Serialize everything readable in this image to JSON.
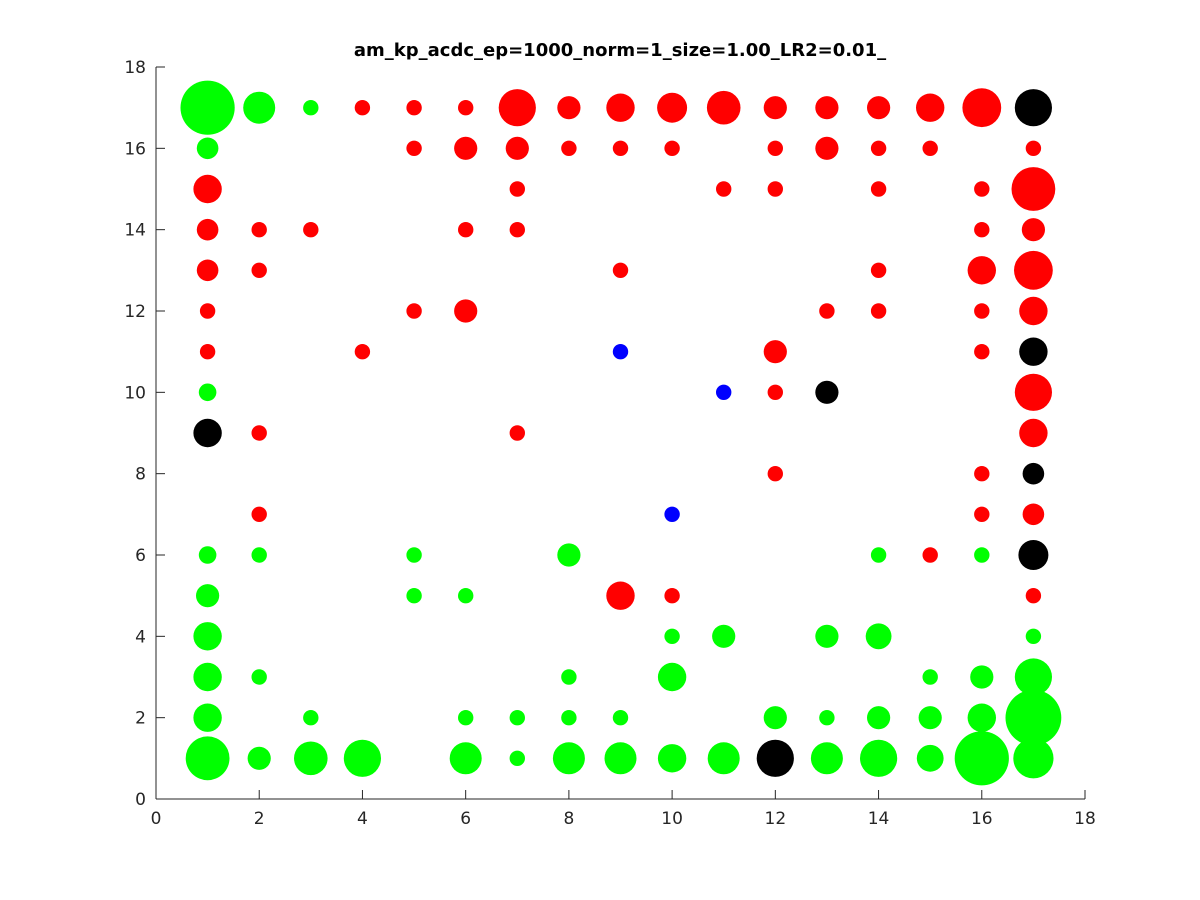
{
  "chart_data": {
    "type": "scatter",
    "title": "am_kp_acdc_ep=1000_norm=1_size=1.00_LR2=0.01_",
    "xlabel": "",
    "ylabel": "",
    "xlim": [
      0,
      18
    ],
    "ylim": [
      0,
      18
    ],
    "xticks": [
      "0",
      "2",
      "4",
      "6",
      "8",
      "10",
      "12",
      "14",
      "16",
      "18"
    ],
    "yticks": [
      "0",
      "2",
      "4",
      "6",
      "8",
      "10",
      "12",
      "14",
      "16",
      "18"
    ],
    "grid": false,
    "legend": "none",
    "colors": {
      "green": "#00ff00",
      "red": "#ff0000",
      "blue": "#0000ff",
      "black": "#000000"
    },
    "note_size": "marker diameter in data units (x-axis scale)",
    "series": [
      {
        "color": "green",
        "points": [
          [
            1,
            17,
            1.05
          ],
          [
            2,
            17,
            0.62
          ],
          [
            3,
            17,
            0.3
          ],
          [
            1,
            16,
            0.42
          ],
          [
            1,
            10,
            0.34
          ],
          [
            1,
            6,
            0.34
          ],
          [
            2,
            6,
            0.3
          ],
          [
            5,
            6,
            0.3
          ],
          [
            8,
            6,
            0.45
          ],
          [
            14,
            6,
            0.3
          ],
          [
            16,
            6,
            0.3
          ],
          [
            1,
            5,
            0.45
          ],
          [
            5,
            5,
            0.3
          ],
          [
            6,
            5,
            0.3
          ],
          [
            1,
            4,
            0.55
          ],
          [
            10,
            4,
            0.3
          ],
          [
            11,
            4,
            0.45
          ],
          [
            13,
            4,
            0.45
          ],
          [
            14,
            4,
            0.5
          ],
          [
            17,
            4,
            0.3
          ],
          [
            1,
            3,
            0.55
          ],
          [
            2,
            3,
            0.3
          ],
          [
            8,
            3,
            0.3
          ],
          [
            10,
            3,
            0.55
          ],
          [
            15,
            3,
            0.3
          ],
          [
            16,
            3,
            0.45
          ],
          [
            17,
            3,
            0.72
          ],
          [
            1,
            2,
            0.55
          ],
          [
            3,
            2,
            0.3
          ],
          [
            6,
            2,
            0.3
          ],
          [
            7,
            2,
            0.3
          ],
          [
            8,
            2,
            0.3
          ],
          [
            9,
            2,
            0.3
          ],
          [
            12,
            2,
            0.45
          ],
          [
            13,
            2,
            0.3
          ],
          [
            14,
            2,
            0.45
          ],
          [
            15,
            2,
            0.45
          ],
          [
            16,
            2,
            0.55
          ],
          [
            17,
            2,
            1.08
          ],
          [
            1,
            1,
            0.85
          ],
          [
            2,
            1,
            0.45
          ],
          [
            3,
            1,
            0.65
          ],
          [
            4,
            1,
            0.72
          ],
          [
            6,
            1,
            0.62
          ],
          [
            7,
            1,
            0.3
          ],
          [
            8,
            1,
            0.62
          ],
          [
            9,
            1,
            0.62
          ],
          [
            10,
            1,
            0.55
          ],
          [
            11,
            1,
            0.62
          ],
          [
            13,
            1,
            0.62
          ],
          [
            14,
            1,
            0.72
          ],
          [
            15,
            1,
            0.52
          ],
          [
            16,
            1,
            1.05
          ],
          [
            17,
            1,
            0.78
          ]
        ]
      },
      {
        "color": "red",
        "points": [
          [
            4,
            17,
            0.3
          ],
          [
            5,
            17,
            0.3
          ],
          [
            6,
            17,
            0.3
          ],
          [
            7,
            17,
            0.72
          ],
          [
            8,
            17,
            0.45
          ],
          [
            9,
            17,
            0.55
          ],
          [
            10,
            17,
            0.58
          ],
          [
            11,
            17,
            0.65
          ],
          [
            12,
            17,
            0.45
          ],
          [
            13,
            17,
            0.45
          ],
          [
            14,
            17,
            0.45
          ],
          [
            15,
            17,
            0.55
          ],
          [
            16,
            17,
            0.75
          ],
          [
            5,
            16,
            0.3
          ],
          [
            6,
            16,
            0.45
          ],
          [
            7,
            16,
            0.45
          ],
          [
            8,
            16,
            0.3
          ],
          [
            9,
            16,
            0.3
          ],
          [
            10,
            16,
            0.3
          ],
          [
            12,
            16,
            0.3
          ],
          [
            13,
            16,
            0.45
          ],
          [
            14,
            16,
            0.3
          ],
          [
            15,
            16,
            0.3
          ],
          [
            17,
            16,
            0.3
          ],
          [
            1,
            15,
            0.55
          ],
          [
            7,
            15,
            0.3
          ],
          [
            11,
            15,
            0.3
          ],
          [
            12,
            15,
            0.3
          ],
          [
            14,
            15,
            0.3
          ],
          [
            16,
            15,
            0.3
          ],
          [
            17,
            15,
            0.85
          ],
          [
            1,
            14,
            0.42
          ],
          [
            2,
            14,
            0.3
          ],
          [
            3,
            14,
            0.3
          ],
          [
            6,
            14,
            0.3
          ],
          [
            7,
            14,
            0.3
          ],
          [
            16,
            14,
            0.3
          ],
          [
            17,
            14,
            0.45
          ],
          [
            1,
            13,
            0.42
          ],
          [
            2,
            13,
            0.3
          ],
          [
            9,
            13,
            0.3
          ],
          [
            14,
            13,
            0.3
          ],
          [
            16,
            13,
            0.55
          ],
          [
            17,
            13,
            0.75
          ],
          [
            1,
            12,
            0.3
          ],
          [
            5,
            12,
            0.3
          ],
          [
            6,
            12,
            0.45
          ],
          [
            13,
            12,
            0.3
          ],
          [
            14,
            12,
            0.3
          ],
          [
            16,
            12,
            0.3
          ],
          [
            17,
            12,
            0.55
          ],
          [
            1,
            11,
            0.3
          ],
          [
            4,
            11,
            0.3
          ],
          [
            12,
            11,
            0.45
          ],
          [
            16,
            11,
            0.3
          ],
          [
            12,
            10,
            0.3
          ],
          [
            17,
            10,
            0.72
          ],
          [
            2,
            9,
            0.3
          ],
          [
            7,
            9,
            0.3
          ],
          [
            17,
            9,
            0.55
          ],
          [
            12,
            8,
            0.3
          ],
          [
            16,
            8,
            0.3
          ],
          [
            2,
            7,
            0.3
          ],
          [
            16,
            7,
            0.3
          ],
          [
            17,
            7,
            0.42
          ],
          [
            15,
            6,
            0.3
          ],
          [
            9,
            5,
            0.55
          ],
          [
            10,
            5,
            0.3
          ],
          [
            17,
            5,
            0.3
          ]
        ]
      },
      {
        "color": "blue",
        "points": [
          [
            9,
            11,
            0.3
          ],
          [
            11,
            10,
            0.3
          ],
          [
            10,
            7,
            0.3
          ]
        ]
      },
      {
        "color": "black",
        "points": [
          [
            17,
            17,
            0.72
          ],
          [
            17,
            11,
            0.55
          ],
          [
            13,
            10,
            0.45
          ],
          [
            1,
            9,
            0.55
          ],
          [
            17,
            8,
            0.42
          ],
          [
            17,
            6,
            0.58
          ],
          [
            12,
            1,
            0.72
          ]
        ]
      }
    ]
  }
}
